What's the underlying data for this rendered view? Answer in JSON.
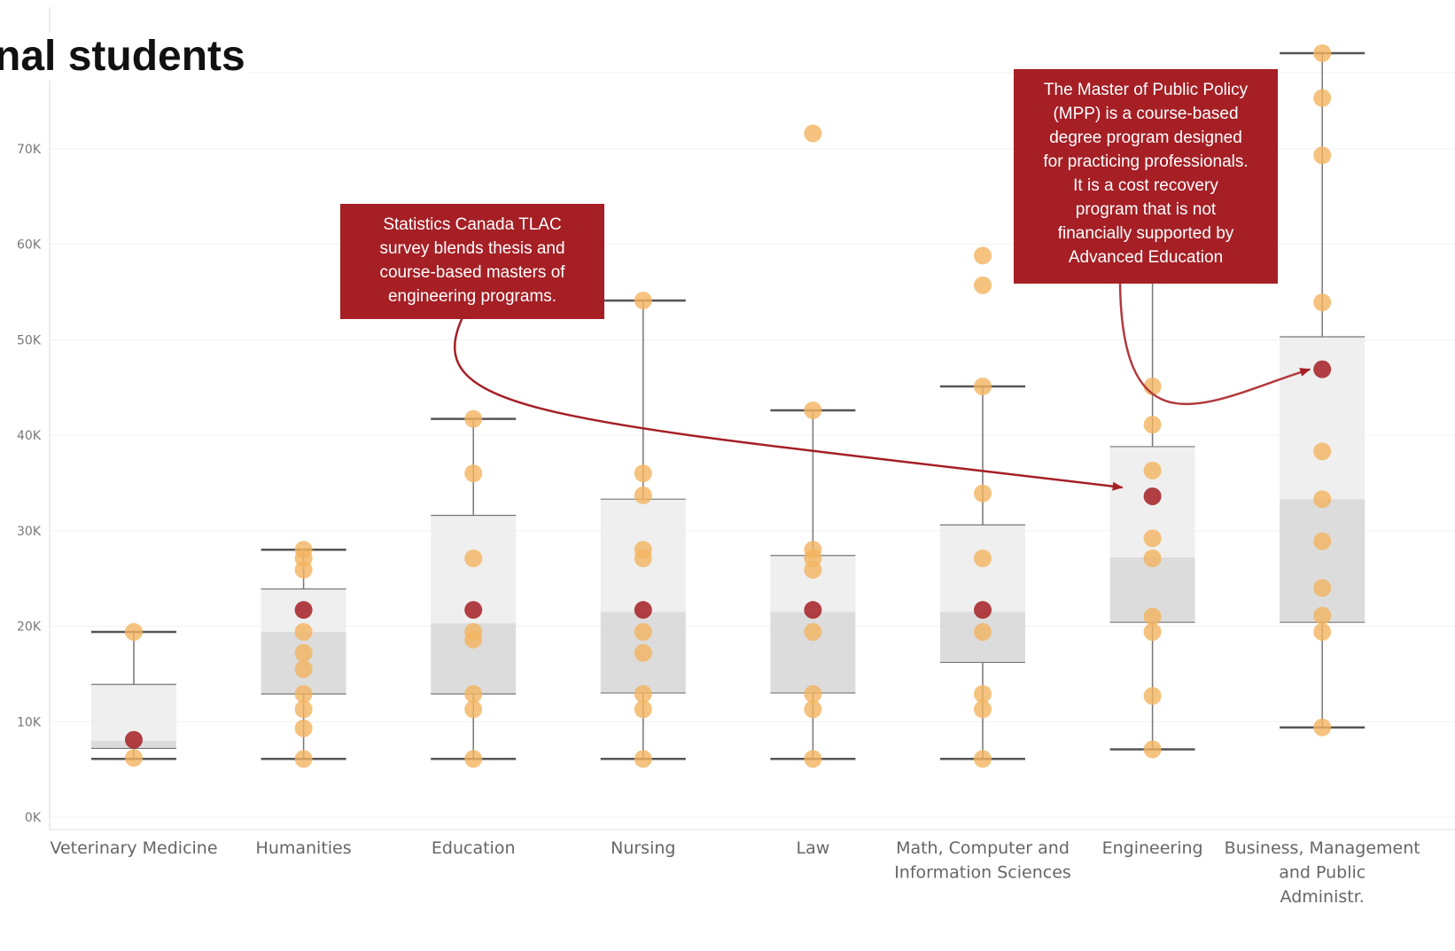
{
  "title": "nal students",
  "chart_data": {
    "type": "box",
    "ylim": [
      0,
      80000
    ],
    "y_ticks": [
      {
        "value": 0,
        "label": "0K"
      },
      {
        "value": 10000,
        "label": "10K"
      },
      {
        "value": 20000,
        "label": "20K"
      },
      {
        "value": 30000,
        "label": "30K"
      },
      {
        "value": 40000,
        "label": "40K"
      },
      {
        "value": 50000,
        "label": "50K"
      },
      {
        "value": 60000,
        "label": "60K"
      },
      {
        "value": 70000,
        "label": "70K"
      }
    ],
    "grid": true,
    "colors": {
      "point": "#f2b45f",
      "highlight": "#a51f25",
      "box_upper": "#efefef",
      "box_lower": "#dcdcdc",
      "whisker": "#555555",
      "callout": "#a51f25"
    },
    "categories": [
      {
        "label": "Veterinary Medicine",
        "box": {
          "min": 6100,
          "q1": 7200,
          "median": 8000,
          "q3": 13900,
          "max": 19400
        },
        "points": [
          19400,
          6200
        ],
        "highlight": 8100
      },
      {
        "label": "Humanities",
        "box": {
          "min": 6100,
          "q1": 12900,
          "median": 19400,
          "q3": 23900,
          "max": 28000
        },
        "points": [
          28000,
          27100,
          25900,
          19400,
          17200,
          15500,
          12900,
          11300,
          9300,
          6100
        ],
        "highlight": 21700
      },
      {
        "label": "Education",
        "box": {
          "min": 6100,
          "q1": 12900,
          "median": 20300,
          "q3": 31600,
          "max": 41700
        },
        "points": [
          41700,
          36000,
          27100,
          19400,
          18600,
          12900,
          11300,
          6100
        ],
        "highlight": 21700
      },
      {
        "label": "Nursing",
        "box": {
          "min": 6100,
          "q1": 13000,
          "median": 21500,
          "q3": 33300,
          "max": 54100
        },
        "points": [
          54100,
          36000,
          33700,
          28000,
          27100,
          19400,
          17200,
          12900,
          11300,
          6100
        ],
        "highlight": 21700
      },
      {
        "label": "Law",
        "box": {
          "min": 6100,
          "q1": 13000,
          "median": 21500,
          "q3": 27400,
          "max": 42600
        },
        "points": [
          71600,
          42600,
          28000,
          27100,
          25900,
          19400,
          12900,
          11300,
          6100
        ],
        "highlight": 21700
      },
      {
        "label": "Math, Computer and Information Sciences",
        "box": {
          "min": 6100,
          "q1": 16200,
          "median": 21500,
          "q3": 30600,
          "max": 45100
        },
        "points": [
          58800,
          55700,
          45100,
          33900,
          27100,
          19400,
          12900,
          11300,
          6100
        ],
        "highlight": 21700
      },
      {
        "label": "Engineering",
        "box": {
          "min": 7100,
          "q1": 20400,
          "median": 27200,
          "q3": 38800,
          "max": 58900
        },
        "points": [
          45100,
          41100,
          36300,
          29200,
          27100,
          21000,
          19400,
          12700,
          7100
        ],
        "highlight": 33600
      },
      {
        "label": "Business, Management and Public Administr.",
        "box": {
          "min": 9400,
          "q1": 20400,
          "median": 33300,
          "q3": 50300,
          "max": 80000
        },
        "points": [
          80000,
          75300,
          69300,
          53900,
          38300,
          33300,
          28900,
          24000,
          21100,
          19400,
          9400
        ],
        "highlight": 46900
      }
    ],
    "annotations": [
      {
        "id": "callout-1",
        "text": "Statistics Canada TLAC\nsurvey blends thesis and\ncourse-based masters of\nengineering programs.",
        "target_category": "Engineering",
        "target_value": 33600
      },
      {
        "id": "callout-2",
        "text": "The Master of Public Policy\n(MPP) is a course-based\ndegree program designed\nfor practicing professionals.\nIt is a cost recovery\nprogram that is not\nfinancially supported by\nAdvanced Education",
        "target_category": "Business, Management and Public Administr.",
        "target_value": 46900
      }
    ]
  }
}
